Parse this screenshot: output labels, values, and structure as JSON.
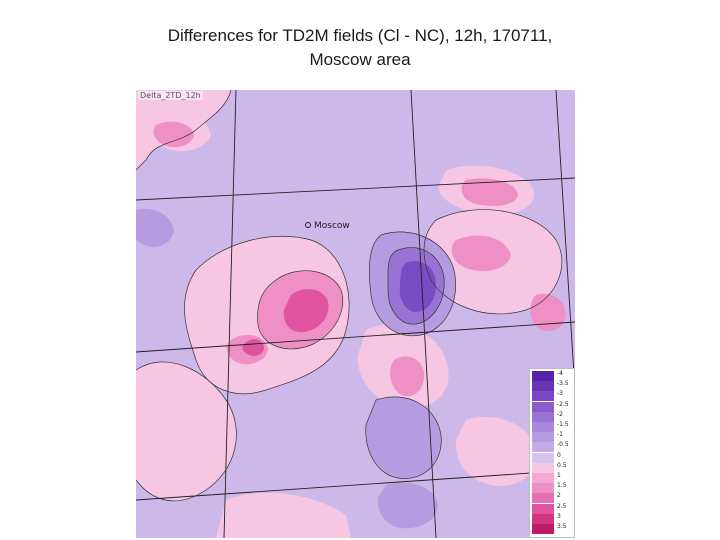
{
  "title": {
    "line1": "Differences for TD2M fields (Cl - NC), 12h, 170711,",
    "line2": "Moscow area"
  },
  "map": {
    "field_label": "Delta_2TD_12h",
    "city_label": "Moscow",
    "colors": {
      "background": "#cdb8ea",
      "light_pink": "#f7c6e3",
      "mid_pink": "#ee8fc6",
      "strong_pink": "#e0549f",
      "light_purple": "#b79be0",
      "mid_purple": "#9a72d4",
      "deep_purple": "#7a4cc4",
      "grid_line": "#222222",
      "contour": "#333333"
    }
  },
  "legend": {
    "levels": [
      {
        "label": "-4",
        "color": "#5a22a8"
      },
      {
        "label": "-3.5",
        "color": "#6a33b6"
      },
      {
        "label": "-3",
        "color": "#7a48c2"
      },
      {
        "label": "-2.5",
        "color": "#8a5ccc"
      },
      {
        "label": "-2",
        "color": "#9a72d4"
      },
      {
        "label": "-1.5",
        "color": "#a987da"
      },
      {
        "label": "-1",
        "color": "#b79be0"
      },
      {
        "label": "-0.5",
        "color": "#c4acE6"
      },
      {
        "label": "0",
        "color": "#d3c3ee"
      },
      {
        "label": "0.5",
        "color": "#f7c6e3"
      },
      {
        "label": "1",
        "color": "#f3a9d3"
      },
      {
        "label": "1.5",
        "color": "#ee8fc6"
      },
      {
        "label": "2",
        "color": "#e670b4"
      },
      {
        "label": "2.5",
        "color": "#e0549f"
      },
      {
        "label": "3",
        "color": "#d2347f"
      },
      {
        "label": "3.5",
        "color": "#bf1a66"
      }
    ]
  }
}
